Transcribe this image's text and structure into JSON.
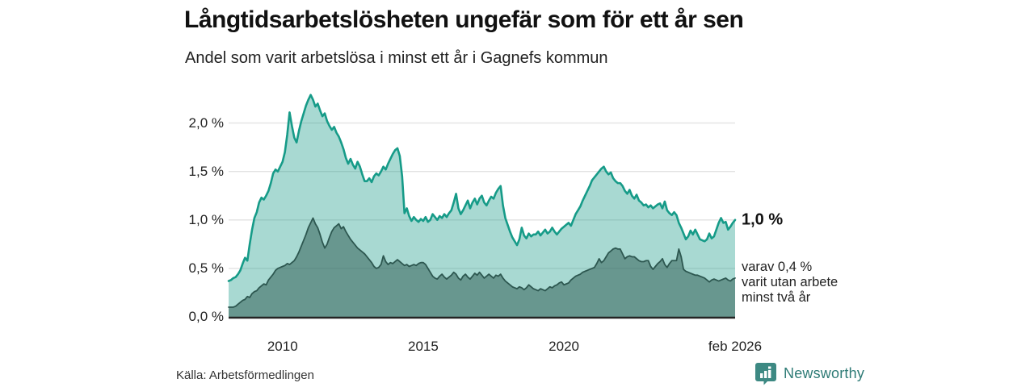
{
  "header": {
    "title": "Långtidsarbetslösheten ungefär som för ett år sen",
    "subtitle": "Andel som varit arbetslösa i minst ett år i Gagnefs kommun"
  },
  "footer": {
    "source": "Källa: Arbetsförmedlingen",
    "brand": "Newsworthy",
    "brand_icon": "bar-chart-badge-icon",
    "brand_color": "#2e7b76",
    "brand_badge_color": "#3d8983"
  },
  "annotations": {
    "series1_end_label": "1,0 %",
    "series2_end_label_lines": [
      "varav 0,4 %",
      "varit utan arbete",
      "minst två år"
    ]
  },
  "chart_data": {
    "type": "area",
    "title": "Långtidsarbetslösheten ungefär som för ett år sen",
    "subtitle": "Andel som varit arbetslösa i minst ett år i Gagnefs kommun",
    "unit": "% av befolkningen, andel arbetslösa",
    "frequency": "monthly",
    "x_start": "2008-02",
    "x_end": "2026-02",
    "ylim": [
      0,
      2.4
    ],
    "grid": "horizontal",
    "y_ticks": [
      {
        "label": "0,0 %",
        "value": 0.0
      },
      {
        "label": "0,5 %",
        "value": 0.5
      },
      {
        "label": "1,0 %",
        "value": 1.0
      },
      {
        "label": "1,5 %",
        "value": 1.5
      },
      {
        "label": "2,0 %",
        "value": 2.0
      }
    ],
    "x_ticks": [
      {
        "label": "2010",
        "index": 23
      },
      {
        "label": "2015",
        "index": 83
      },
      {
        "label": "2020",
        "index": 143
      },
      {
        "label": "feb 2026",
        "index": 216
      }
    ],
    "colors": {
      "series1_line": "#169b88",
      "series1_fill": "rgba(26,156,137,0.38)",
      "series2_line": "#2d5750",
      "series2_fill": "rgba(46,90,83,0.52)",
      "gridline": "#e2e2e2",
      "baseline": "#242424"
    },
    "series": [
      {
        "name": "Arbetslösa minst ett år",
        "end_value": 1.0,
        "values": [
          0.37,
          0.38,
          0.4,
          0.41,
          0.44,
          0.48,
          0.55,
          0.61,
          0.58,
          0.75,
          0.9,
          1.02,
          1.08,
          1.18,
          1.23,
          1.21,
          1.25,
          1.3,
          1.38,
          1.48,
          1.52,
          1.5,
          1.55,
          1.6,
          1.7,
          1.88,
          2.11,
          1.97,
          1.85,
          1.8,
          1.92,
          2.02,
          2.1,
          2.18,
          2.24,
          2.29,
          2.24,
          2.17,
          2.2,
          2.13,
          2.07,
          2.1,
          2.02,
          1.97,
          1.93,
          1.96,
          1.9,
          1.86,
          1.8,
          1.73,
          1.64,
          1.58,
          1.63,
          1.57,
          1.53,
          1.6,
          1.55,
          1.47,
          1.4,
          1.4,
          1.43,
          1.39,
          1.45,
          1.48,
          1.46,
          1.5,
          1.55,
          1.52,
          1.58,
          1.63,
          1.68,
          1.72,
          1.74,
          1.66,
          1.45,
          1.07,
          1.12,
          1.04,
          0.99,
          1.03,
          1.0,
          0.98,
          1.01,
          0.99,
          1.03,
          0.98,
          1.0,
          1.06,
          1.03,
          1.0,
          1.04,
          1.02,
          1.06,
          1.03,
          1.07,
          1.1,
          1.18,
          1.27,
          1.12,
          1.06,
          1.1,
          1.15,
          1.2,
          1.12,
          1.18,
          1.22,
          1.16,
          1.22,
          1.25,
          1.18,
          1.15,
          1.2,
          1.24,
          1.22,
          1.28,
          1.32,
          1.35,
          1.15,
          1.02,
          0.95,
          0.88,
          0.82,
          0.78,
          0.74,
          0.8,
          0.92,
          0.84,
          0.81,
          0.86,
          0.83,
          0.85,
          0.85,
          0.88,
          0.84,
          0.87,
          0.9,
          0.86,
          0.88,
          0.92,
          0.88,
          0.85,
          0.88,
          0.91,
          0.93,
          0.95,
          0.97,
          0.94,
          1.0,
          1.06,
          1.1,
          1.14,
          1.2,
          1.25,
          1.3,
          1.35,
          1.41,
          1.44,
          1.47,
          1.5,
          1.53,
          1.55,
          1.5,
          1.47,
          1.49,
          1.43,
          1.4,
          1.38,
          1.38,
          1.35,
          1.3,
          1.27,
          1.31,
          1.25,
          1.22,
          1.26,
          1.2,
          1.18,
          1.15,
          1.16,
          1.13,
          1.15,
          1.12,
          1.14,
          1.16,
          1.17,
          1.12,
          1.19,
          1.1,
          1.07,
          1.05,
          1.08,
          1.05,
          0.97,
          0.92,
          0.86,
          0.8,
          0.83,
          0.89,
          0.85,
          0.9,
          0.85,
          0.8,
          0.79,
          0.78,
          0.8,
          0.86,
          0.81,
          0.83,
          0.9,
          0.97,
          1.02,
          0.97,
          0.98,
          0.9,
          0.93,
          0.97,
          1.0
        ]
      },
      {
        "name": "varav arbetslösa minst två år",
        "end_value": 0.4,
        "values": [
          0.1,
          0.1,
          0.1,
          0.11,
          0.13,
          0.15,
          0.17,
          0.18,
          0.21,
          0.2,
          0.24,
          0.26,
          0.27,
          0.3,
          0.32,
          0.34,
          0.33,
          0.38,
          0.41,
          0.44,
          0.48,
          0.5,
          0.51,
          0.52,
          0.53,
          0.55,
          0.54,
          0.56,
          0.58,
          0.62,
          0.67,
          0.73,
          0.79,
          0.85,
          0.92,
          0.97,
          1.02,
          0.96,
          0.92,
          0.85,
          0.77,
          0.71,
          0.75,
          0.82,
          0.88,
          0.92,
          0.94,
          0.96,
          0.91,
          0.93,
          0.88,
          0.84,
          0.8,
          0.77,
          0.74,
          0.71,
          0.69,
          0.67,
          0.65,
          0.62,
          0.59,
          0.56,
          0.52,
          0.5,
          0.51,
          0.54,
          0.63,
          0.57,
          0.54,
          0.56,
          0.55,
          0.57,
          0.59,
          0.57,
          0.55,
          0.53,
          0.54,
          0.52,
          0.53,
          0.54,
          0.53,
          0.55,
          0.56,
          0.56,
          0.54,
          0.5,
          0.46,
          0.42,
          0.4,
          0.39,
          0.42,
          0.44,
          0.41,
          0.39,
          0.41,
          0.43,
          0.46,
          0.44,
          0.4,
          0.38,
          0.42,
          0.44,
          0.41,
          0.39,
          0.42,
          0.45,
          0.43,
          0.46,
          0.43,
          0.4,
          0.42,
          0.44,
          0.42,
          0.4,
          0.43,
          0.42,
          0.44,
          0.4,
          0.37,
          0.35,
          0.33,
          0.31,
          0.3,
          0.29,
          0.31,
          0.3,
          0.28,
          0.3,
          0.33,
          0.31,
          0.29,
          0.28,
          0.27,
          0.29,
          0.28,
          0.27,
          0.29,
          0.31,
          0.3,
          0.32,
          0.33,
          0.35,
          0.36,
          0.33,
          0.34,
          0.35,
          0.38,
          0.4,
          0.42,
          0.43,
          0.44,
          0.46,
          0.47,
          0.48,
          0.49,
          0.5,
          0.51,
          0.55,
          0.6,
          0.56,
          0.58,
          0.62,
          0.66,
          0.68,
          0.7,
          0.71,
          0.7,
          0.7,
          0.65,
          0.6,
          0.62,
          0.63,
          0.62,
          0.62,
          0.6,
          0.58,
          0.57,
          0.57,
          0.58,
          0.58,
          0.52,
          0.49,
          0.52,
          0.55,
          0.57,
          0.6,
          0.54,
          0.51,
          0.55,
          0.58,
          0.58,
          0.58,
          0.7,
          0.62,
          0.49,
          0.47,
          0.46,
          0.45,
          0.44,
          0.43,
          0.43,
          0.42,
          0.41,
          0.4,
          0.38,
          0.36,
          0.38,
          0.39,
          0.38,
          0.37,
          0.38,
          0.39,
          0.4,
          0.38,
          0.37,
          0.39,
          0.4
        ]
      }
    ]
  }
}
